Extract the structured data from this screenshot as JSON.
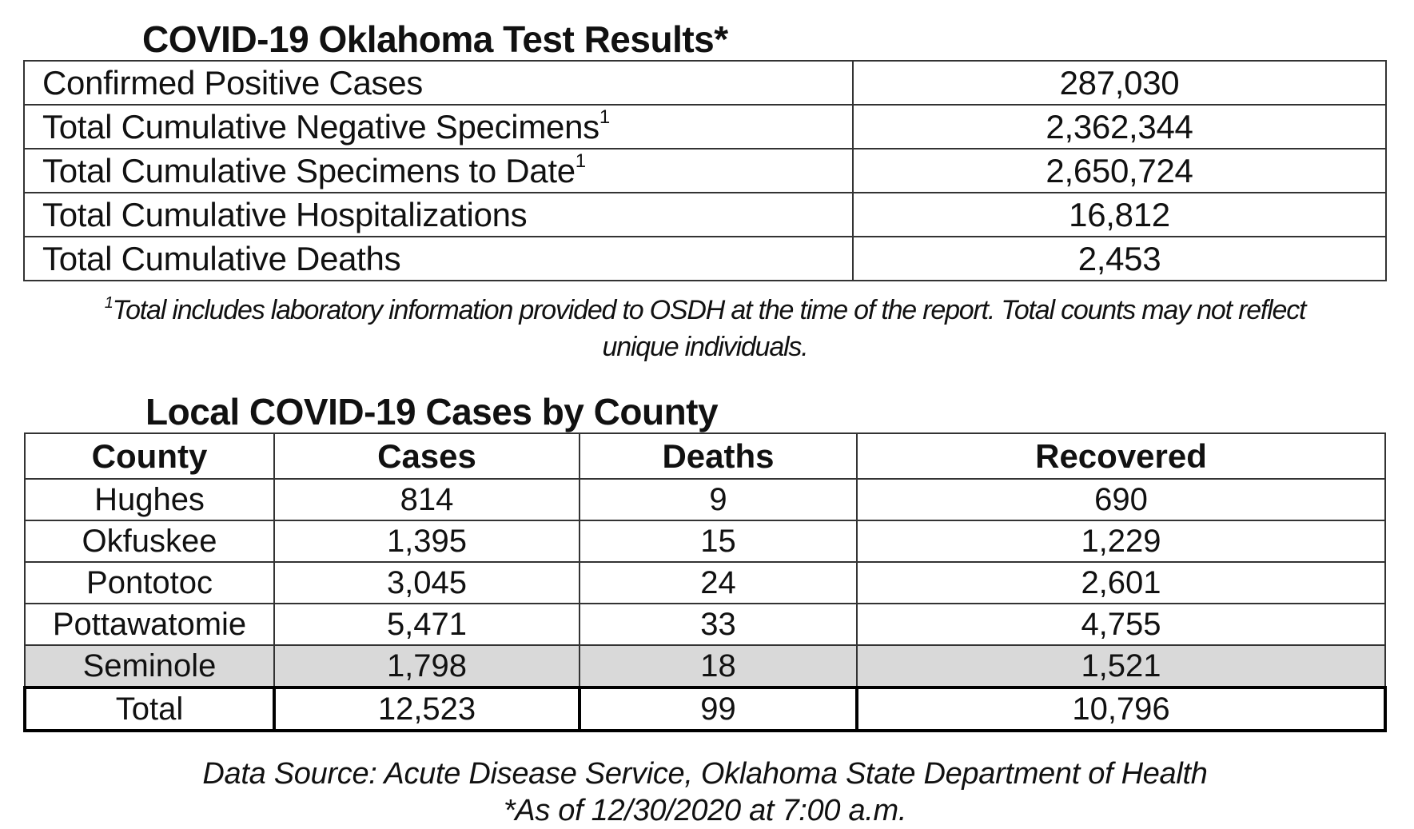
{
  "test_results": {
    "title": "COVID-19 Oklahoma Test Results*",
    "rows": [
      {
        "label": "Confirmed Positive Cases",
        "sup": "",
        "value": "287,030"
      },
      {
        "label": "Total Cumulative Negative Specimens",
        "sup": "1",
        "value": "2,362,344"
      },
      {
        "label": "Total Cumulative Specimens to Date",
        "sup": "1",
        "value": "2,650,724"
      },
      {
        "label": "Total Cumulative Hospitalizations",
        "sup": "",
        "value": "16,812"
      },
      {
        "label": "Total Cumulative Deaths",
        "sup": "",
        "value": "2,453"
      }
    ],
    "footnote_mark": "1",
    "footnote_line1": "Total includes laboratory information provided to OSDH at the time of the report. Total counts may not reflect",
    "footnote_line2": "unique individuals."
  },
  "county_cases": {
    "title": "Local COVID-19 Cases by County",
    "headers": {
      "county": "County",
      "cases": "Cases",
      "deaths": "Deaths",
      "recovered": "Recovered"
    },
    "rows": [
      {
        "county": "Hughes",
        "cases": "814",
        "deaths": "9",
        "recovered": "690"
      },
      {
        "county": "Okfuskee",
        "cases": "1,395",
        "deaths": "15",
        "recovered": "1,229"
      },
      {
        "county": "Pontotoc",
        "cases": "3,045",
        "deaths": "24",
        "recovered": "2,601"
      },
      {
        "county": "Pottawatomie",
        "cases": "5,471",
        "deaths": "33",
        "recovered": "4,755"
      },
      {
        "county": "Seminole",
        "cases": "1,798",
        "deaths": "18",
        "recovered": "1,521"
      }
    ],
    "highlight_color": "#d9d9d9",
    "total": {
      "county": "Total",
      "cases": "12,523",
      "deaths": "99",
      "recovered": "10,796"
    }
  },
  "source": {
    "line1": "Data Source: Acute Disease Service, Oklahoma State Department of Health",
    "line2": "*As of 12/30/2020 at 7:00 a.m."
  }
}
